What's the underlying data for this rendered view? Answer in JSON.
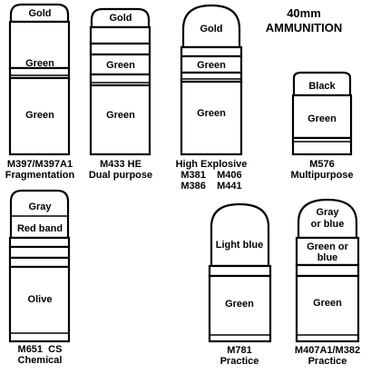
{
  "title": {
    "line1": "40mm",
    "line2": "AMMUNITION"
  },
  "rounds": [
    {
      "sections": [
        "Gold",
        "Green",
        "Green"
      ],
      "caption": [
        "M397/M397A1",
        "Fragmentation"
      ]
    },
    {
      "sections": [
        "Gold",
        "Green",
        "Green"
      ],
      "caption": [
        "M433 HE",
        "Dual purpose"
      ]
    },
    {
      "sections": [
        "Gold",
        "Green",
        "Green"
      ],
      "caption": [
        "High Explosive",
        "M381    M406",
        "M386    M441"
      ]
    },
    {
      "sections": [
        "Black",
        "Green"
      ],
      "caption": [
        "M576",
        "Multipurpose"
      ]
    },
    {
      "sections": [
        "Gray",
        "Red band",
        "Olive"
      ],
      "caption": [
        "M651  CS",
        "Chemical"
      ]
    },
    {
      "sections": [
        "Light blue",
        "Green"
      ],
      "caption": [
        "M781",
        "Practice"
      ]
    },
    {
      "sections": [
        "Gray",
        "or blue",
        "Green or",
        "blue",
        "Green"
      ],
      "caption": [
        "M407A1/M382",
        "Practice"
      ]
    }
  ]
}
